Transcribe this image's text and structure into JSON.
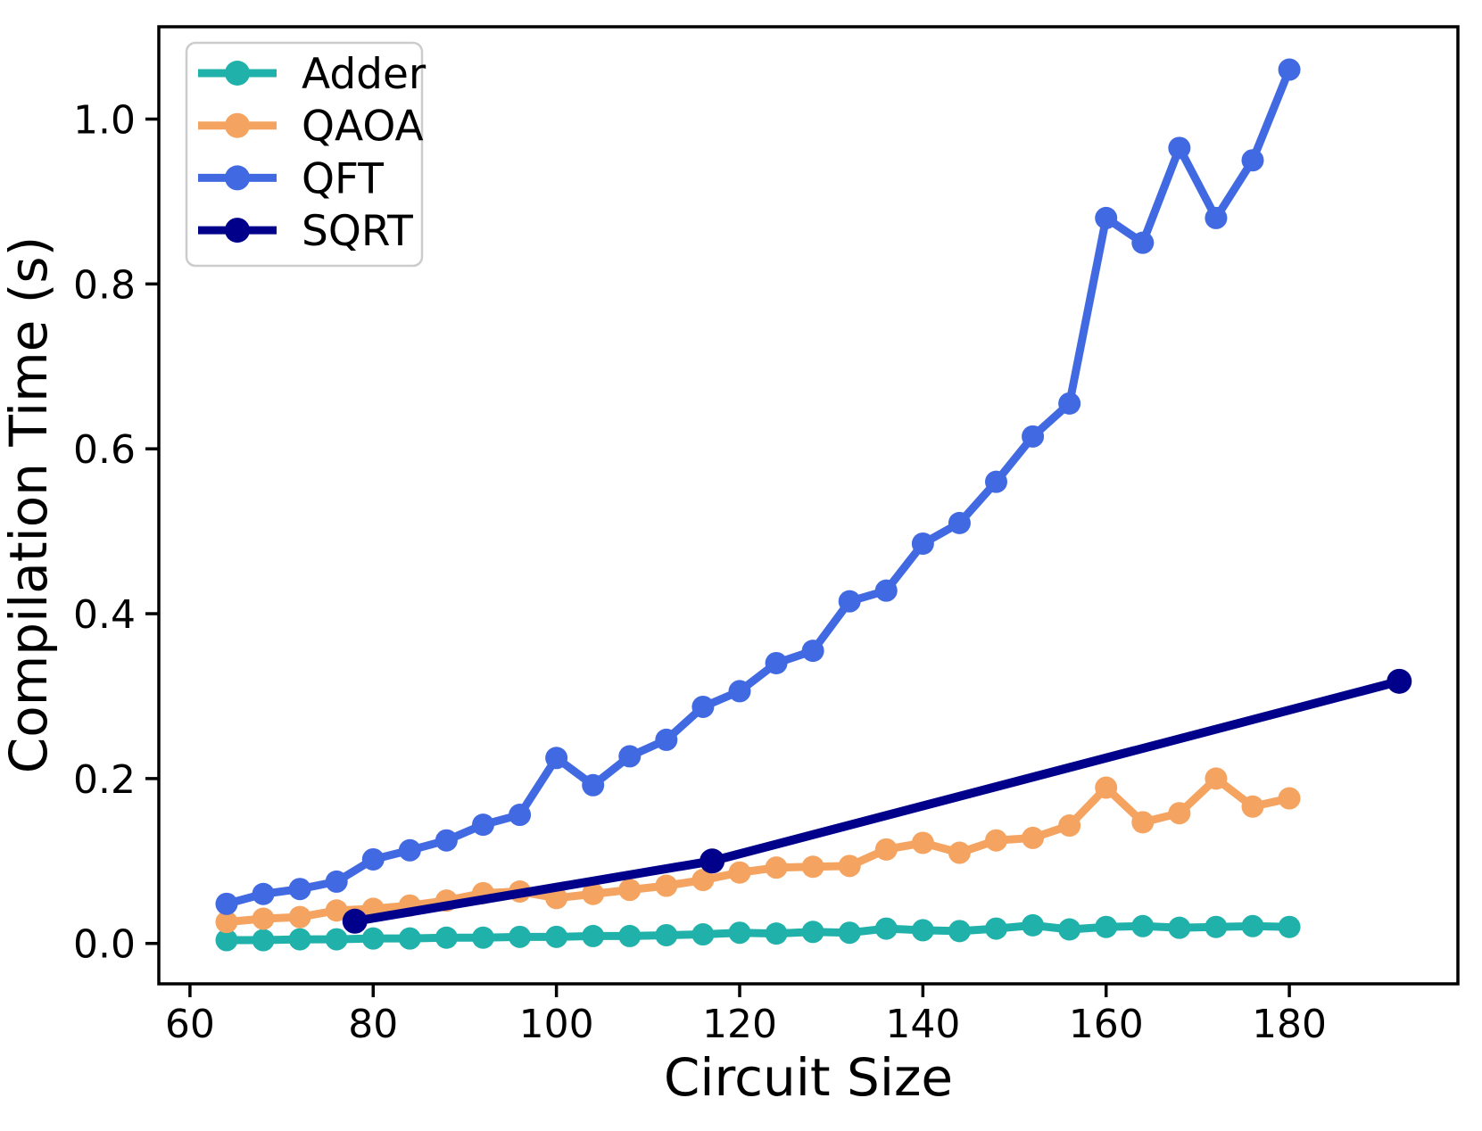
{
  "figure": {
    "background": "#ffffff",
    "frame_color": "#000000",
    "legend_border_color": "#cccccc"
  },
  "chart_data": {
    "type": "line",
    "title": "",
    "xlabel": "Circuit Size",
    "ylabel": "Compilation Time (s)",
    "xlim": [
      56.6,
      198.4
    ],
    "ylim": [
      -0.049,
      1.112
    ],
    "grid": false,
    "legend_position": "upper left",
    "xticks": [
      {
        "value": 60,
        "label": "60"
      },
      {
        "value": 80,
        "label": "80"
      },
      {
        "value": 100,
        "label": "100"
      },
      {
        "value": 120,
        "label": "120"
      },
      {
        "value": 140,
        "label": "140"
      },
      {
        "value": 160,
        "label": "160"
      },
      {
        "value": 180,
        "label": "180"
      }
    ],
    "yticks": [
      {
        "value": 0.0,
        "label": "0.0"
      },
      {
        "value": 0.2,
        "label": "0.2"
      },
      {
        "value": 0.4,
        "label": "0.4"
      },
      {
        "value": 0.6,
        "label": "0.6"
      },
      {
        "value": 0.8,
        "label": "0.8"
      },
      {
        "value": 1.0,
        "label": "1.0"
      }
    ],
    "series": [
      {
        "name": "Adder",
        "color": "#20b2aa",
        "x": [
          64,
          68,
          72,
          76,
          80,
          84,
          88,
          92,
          96,
          100,
          104,
          108,
          112,
          116,
          120,
          124,
          128,
          132,
          136,
          140,
          144,
          148,
          152,
          156,
          160,
          164,
          168,
          172,
          176,
          180
        ],
        "y": [
          0.004,
          0.004,
          0.005,
          0.005,
          0.006,
          0.006,
          0.007,
          0.007,
          0.008,
          0.008,
          0.009,
          0.009,
          0.01,
          0.011,
          0.013,
          0.012,
          0.014,
          0.013,
          0.018,
          0.016,
          0.015,
          0.018,
          0.022,
          0.017,
          0.02,
          0.021,
          0.019,
          0.02,
          0.021,
          0.02
        ]
      },
      {
        "name": "QAOA",
        "color": "#f4a460",
        "x": [
          64,
          68,
          72,
          76,
          80,
          84,
          88,
          92,
          96,
          100,
          104,
          108,
          112,
          116,
          120,
          124,
          128,
          132,
          136,
          140,
          144,
          148,
          152,
          156,
          160,
          164,
          168,
          172,
          176,
          180
        ],
        "y": [
          0.026,
          0.03,
          0.032,
          0.04,
          0.042,
          0.046,
          0.052,
          0.061,
          0.063,
          0.055,
          0.06,
          0.065,
          0.07,
          0.077,
          0.086,
          0.092,
          0.093,
          0.094,
          0.114,
          0.122,
          0.11,
          0.125,
          0.128,
          0.143,
          0.189,
          0.147,
          0.158,
          0.2,
          0.166,
          0.176
        ]
      },
      {
        "name": "QFT",
        "color": "#4169e1",
        "x": [
          64,
          68,
          72,
          76,
          80,
          84,
          88,
          92,
          96,
          100,
          104,
          108,
          112,
          116,
          120,
          124,
          128,
          132,
          136,
          140,
          144,
          148,
          152,
          156,
          160,
          164,
          168,
          172,
          176,
          180
        ],
        "y": [
          0.048,
          0.06,
          0.066,
          0.075,
          0.102,
          0.113,
          0.125,
          0.144,
          0.156,
          0.225,
          0.192,
          0.227,
          0.247,
          0.287,
          0.306,
          0.34,
          0.355,
          0.415,
          0.428,
          0.485,
          0.51,
          0.56,
          0.615,
          0.655,
          0.88,
          0.85,
          0.965,
          0.88,
          0.95,
          1.06
        ]
      },
      {
        "name": "SQRT",
        "color": "#00008b",
        "x": [
          78,
          117,
          192
        ],
        "y": [
          0.027,
          0.1,
          0.318
        ]
      }
    ]
  }
}
